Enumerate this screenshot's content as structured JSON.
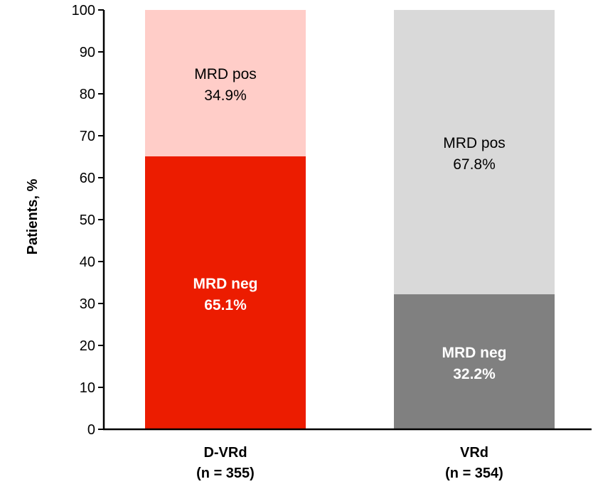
{
  "chart_data": {
    "type": "bar",
    "stacked": true,
    "title": "",
    "xlabel": "",
    "ylabel": "Patients, %",
    "ylim": [
      0,
      100
    ],
    "yticks": [
      0,
      10,
      20,
      30,
      40,
      50,
      60,
      70,
      80,
      90,
      100
    ],
    "grid": false,
    "categories": [
      {
        "name": "D-VRd",
        "n_label": "(n = 355)"
      },
      {
        "name": "VRd",
        "n_label": "(n = 354)"
      }
    ],
    "series": [
      {
        "name": "MRD neg",
        "values": [
          65.1,
          32.2
        ],
        "labels": [
          "65.1%",
          "32.2%"
        ],
        "colors": [
          "#ec1c00",
          "#808080"
        ],
        "label_color": "#ffffff",
        "label_bold": true
      },
      {
        "name": "MRD pos",
        "values": [
          34.9,
          67.8
        ],
        "labels": [
          "34.9%",
          "67.8%"
        ],
        "colors": [
          "#ffcdc8",
          "#d9d9d9"
        ],
        "label_color": "#000000",
        "label_bold": false
      }
    ]
  }
}
